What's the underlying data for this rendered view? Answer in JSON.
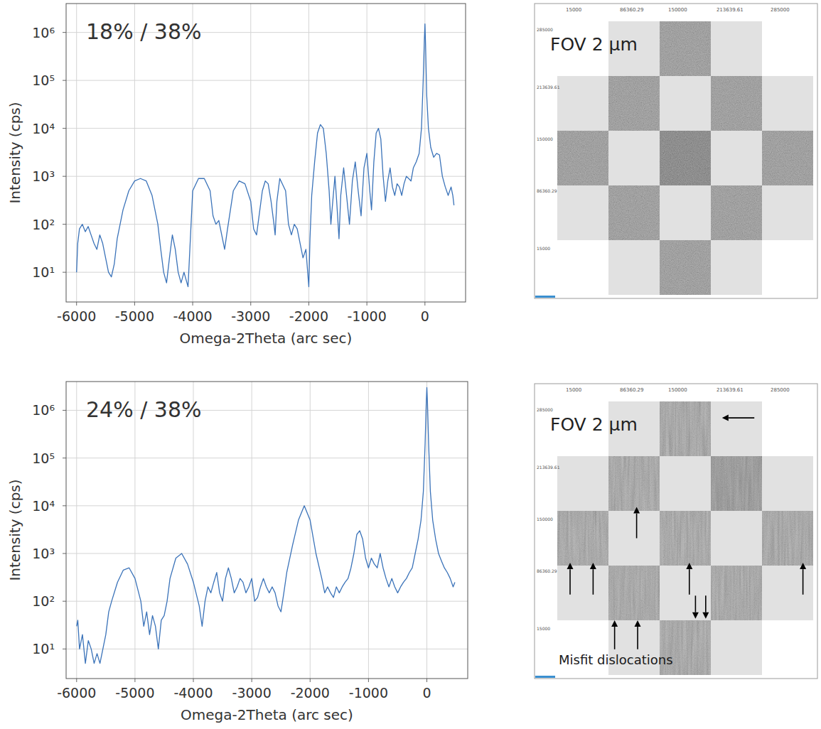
{
  "chart_data": [
    {
      "type": "line",
      "title": "18% / 38%",
      "x_label": "Omega-2Theta (arc sec)",
      "y_label": "Intensity (cps)",
      "log": "y",
      "grid": true,
      "color": "#3b73b9",
      "xlim": [
        -6180,
        700
      ],
      "ylim": [
        2.4,
        4000000
      ],
      "xticks": [
        -6000,
        -5000,
        -4000,
        -3000,
        -2000,
        -1000,
        0
      ],
      "yticks": [
        {
          "value": 10,
          "label": "10¹"
        },
        {
          "value": 100,
          "label": "10²"
        },
        {
          "value": 1000,
          "label": "10³"
        },
        {
          "value": 10000,
          "label": "10⁴"
        },
        {
          "value": 100000,
          "label": "10⁵"
        },
        {
          "value": 1000000,
          "label": "10⁶"
        }
      ],
      "x": [
        -6000,
        -5980,
        -5950,
        -5900,
        -5850,
        -5800,
        -5750,
        -5700,
        -5650,
        -5600,
        -5550,
        -5500,
        -5450,
        -5400,
        -5350,
        -5300,
        -5200,
        -5100,
        -5000,
        -4900,
        -4800,
        -4700,
        -4600,
        -4550,
        -4500,
        -4450,
        -4400,
        -4350,
        -4300,
        -4250,
        -4200,
        -4150,
        -4080,
        -4000,
        -3900,
        -3800,
        -3700,
        -3650,
        -3600,
        -3550,
        -3500,
        -3450,
        -3400,
        -3300,
        -3200,
        -3100,
        -3000,
        -2950,
        -2900,
        -2800,
        -2750,
        -2700,
        -2650,
        -2600,
        -2580,
        -2550,
        -2500,
        -2400,
        -2350,
        -2300,
        -2250,
        -2200,
        -2150,
        -2100,
        -2050,
        -2000,
        -1980,
        -1950,
        -1900,
        -1850,
        -1800,
        -1750,
        -1700,
        -1650,
        -1620,
        -1600,
        -1550,
        -1520,
        -1480,
        -1450,
        -1400,
        -1350,
        -1300,
        -1250,
        -1200,
        -1150,
        -1100,
        -1050,
        -1000,
        -950,
        -920,
        -880,
        -840,
        -800,
        -760,
        -720,
        -680,
        -640,
        -600,
        -560,
        -520,
        -480,
        -440,
        -400,
        -360,
        -320,
        -280,
        -240,
        -200,
        -150,
        -100,
        -60,
        -30,
        -10,
        0,
        10,
        30,
        60,
        100,
        150,
        200,
        250,
        300,
        350,
        400,
        450,
        480,
        500
      ],
      "values": [
        10,
        40,
        80,
        100,
        70,
        90,
        60,
        40,
        30,
        60,
        40,
        20,
        10,
        8,
        15,
        50,
        200,
        500,
        800,
        900,
        800,
        400,
        100,
        30,
        10,
        6,
        20,
        60,
        30,
        10,
        6,
        10,
        5,
        500,
        900,
        900,
        500,
        150,
        100,
        120,
        60,
        30,
        80,
        500,
        800,
        700,
        300,
        80,
        60,
        500,
        800,
        700,
        300,
        100,
        60,
        300,
        900,
        500,
        100,
        60,
        100,
        80,
        40,
        20,
        30,
        5,
        50,
        400,
        2000,
        8000,
        12000,
        10000,
        3000,
        500,
        100,
        200,
        1000,
        300,
        50,
        400,
        1500,
        400,
        100,
        800,
        2000,
        500,
        150,
        1500,
        3000,
        500,
        200,
        2000,
        8000,
        10000,
        6000,
        1000,
        300,
        800,
        1500,
        600,
        400,
        700,
        600,
        400,
        700,
        1000,
        900,
        800,
        1500,
        2000,
        3000,
        10000,
        100000,
        700000,
        1500000,
        600000,
        50000,
        10000,
        4000,
        2500,
        3000,
        2800,
        1000,
        600,
        400,
        600,
        400,
        250
      ]
    },
    {
      "type": "line",
      "title": "24% / 38%",
      "x_label": "Omega-2Theta (arc sec)",
      "y_label": "Intensity (cps)",
      "log": "y",
      "grid": true,
      "color": "#3b73b9",
      "xlim": [
        -6180,
        700
      ],
      "ylim": [
        2.4,
        4000000
      ],
      "xticks": [
        -6000,
        -5000,
        -4000,
        -3000,
        -2000,
        -1000,
        0
      ],
      "yticks": [
        {
          "value": 10,
          "label": "10¹"
        },
        {
          "value": 100,
          "label": "10²"
        },
        {
          "value": 1000,
          "label": "10³"
        },
        {
          "value": 10000,
          "label": "10⁴"
        },
        {
          "value": 100000,
          "label": "10⁵"
        },
        {
          "value": 1000000,
          "label": "10⁶"
        }
      ],
      "x": [
        -6000,
        -5980,
        -5950,
        -5900,
        -5850,
        -5800,
        -5750,
        -5700,
        -5650,
        -5600,
        -5550,
        -5500,
        -5450,
        -5400,
        -5300,
        -5200,
        -5100,
        -5000,
        -4900,
        -4850,
        -4800,
        -4750,
        -4700,
        -4650,
        -4600,
        -4550,
        -4500,
        -4450,
        -4400,
        -4300,
        -4200,
        -4100,
        -4000,
        -3900,
        -3850,
        -3800,
        -3750,
        -3700,
        -3650,
        -3600,
        -3550,
        -3500,
        -3450,
        -3400,
        -3350,
        -3300,
        -3250,
        -3200,
        -3150,
        -3100,
        -3050,
        -3000,
        -2950,
        -2900,
        -2850,
        -2800,
        -2750,
        -2700,
        -2650,
        -2600,
        -2550,
        -2500,
        -2450,
        -2400,
        -2300,
        -2200,
        -2100,
        -2000,
        -1900,
        -1800,
        -1750,
        -1700,
        -1650,
        -1600,
        -1550,
        -1500,
        -1450,
        -1400,
        -1350,
        -1300,
        -1250,
        -1200,
        -1150,
        -1100,
        -1050,
        -1000,
        -950,
        -900,
        -850,
        -800,
        -750,
        -700,
        -650,
        -600,
        -550,
        -500,
        -450,
        -400,
        -350,
        -300,
        -250,
        -200,
        -150,
        -100,
        -60,
        -30,
        -10,
        0,
        10,
        30,
        60,
        100,
        150,
        200,
        250,
        300,
        350,
        400,
        450,
        480
      ],
      "values": [
        30,
        40,
        10,
        20,
        5,
        15,
        10,
        5,
        8,
        5,
        10,
        20,
        60,
        100,
        250,
        450,
        500,
        300,
        100,
        30,
        60,
        20,
        50,
        30,
        10,
        40,
        50,
        100,
        300,
        800,
        1000,
        600,
        250,
        80,
        30,
        100,
        200,
        150,
        250,
        400,
        150,
        100,
        300,
        500,
        300,
        150,
        200,
        300,
        250,
        150,
        200,
        300,
        100,
        120,
        200,
        300,
        200,
        150,
        200,
        150,
        80,
        60,
        150,
        400,
        1500,
        5000,
        10000,
        5000,
        1000,
        300,
        150,
        200,
        150,
        120,
        200,
        150,
        200,
        250,
        300,
        500,
        1000,
        2500,
        3000,
        2000,
        800,
        500,
        800,
        600,
        500,
        1000,
        500,
        300,
        200,
        300,
        200,
        150,
        200,
        250,
        300,
        400,
        500,
        1000,
        2000,
        5000,
        20000,
        200000,
        1500000,
        3000000,
        1500000,
        200000,
        20000,
        5000,
        2000,
        1000,
        700,
        500,
        400,
        300,
        200,
        250
      ]
    }
  ],
  "image_panels": [
    {
      "label": "FOV 2 μm",
      "x_ticks": [
        15000,
        86360.29,
        150000,
        213639.61,
        285000
      ],
      "y_ticks": [
        285000,
        213639.61,
        150000,
        86360.29,
        15000
      ]
    },
    {
      "label": "FOV 2 μm",
      "annotation": "Misfit dislocations",
      "x_ticks": [
        15000,
        86360.29,
        150000,
        213639.61,
        285000
      ],
      "y_ticks": [
        285000,
        213639.61,
        150000,
        86360.29,
        15000
      ]
    }
  ]
}
